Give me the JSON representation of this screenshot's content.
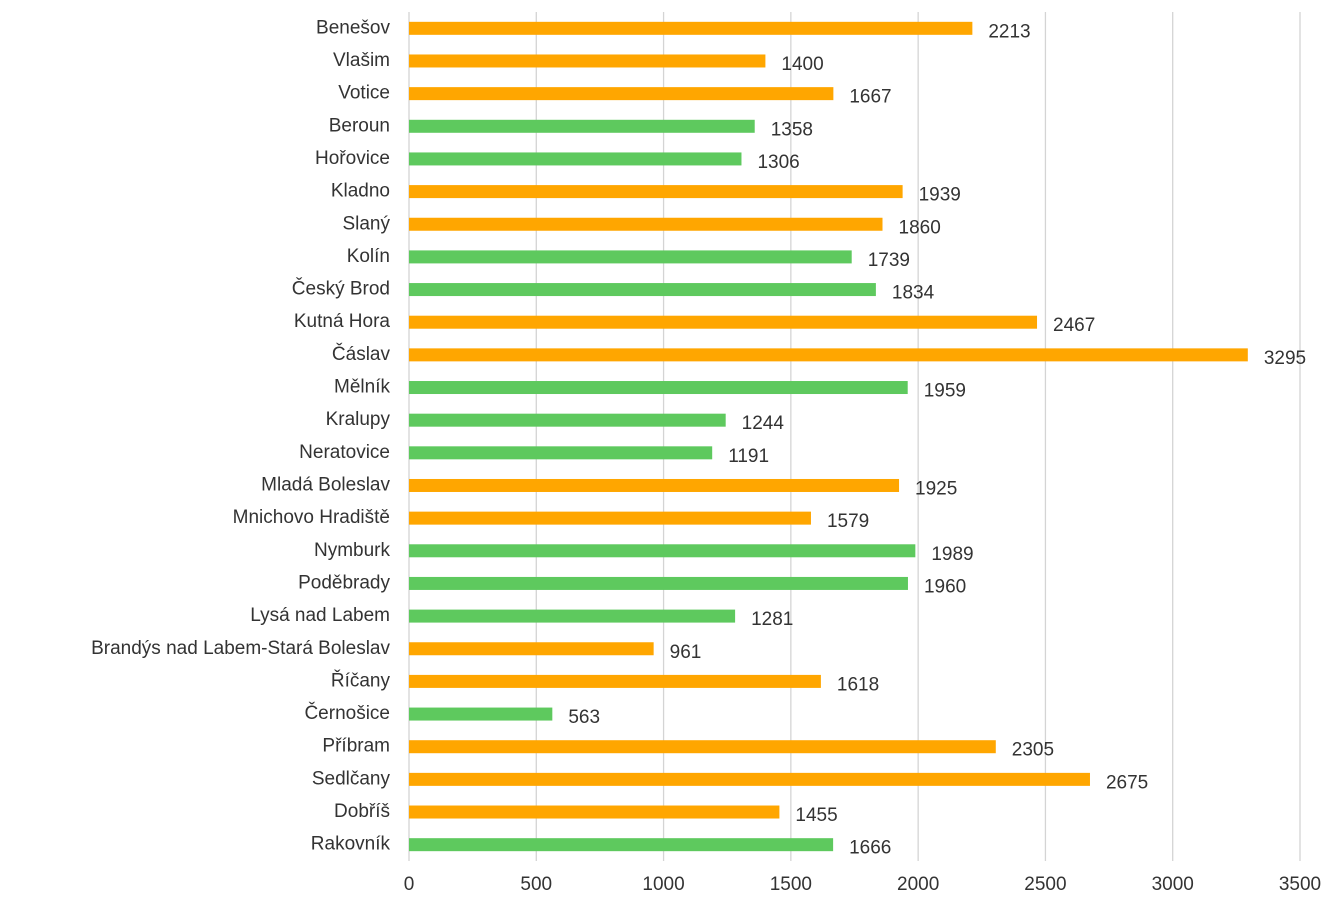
{
  "chart_data": {
    "type": "bar",
    "orientation": "horizontal",
    "categories": [
      "Benešov",
      "Vlašim",
      "Votice",
      "Beroun",
      "Hořovice",
      "Kladno",
      "Slaný",
      "Kolín",
      "Český Brod",
      "Kutná Hora",
      "Čáslav",
      "Mělník",
      "Kralupy",
      "Neratovice",
      "Mladá Boleslav",
      "Mnichovo Hradiště",
      "Nymburk",
      "Poděbrady",
      "Lysá nad Labem",
      "Brandýs nad Labem-Stará Boleslav",
      "Říčany",
      "Černošice",
      "Příbram",
      "Sedlčany",
      "Dobříš",
      "Rakovník"
    ],
    "values": [
      2213,
      1400,
      1667,
      1358,
      1306,
      1939,
      1860,
      1739,
      1834,
      2467,
      3295,
      1959,
      1244,
      1191,
      1925,
      1579,
      1989,
      1960,
      1281,
      961,
      1618,
      563,
      2305,
      2675,
      1455,
      1666
    ],
    "colors": [
      "#ffa600",
      "#ffa600",
      "#ffa600",
      "#5ec95e",
      "#5ec95e",
      "#ffa600",
      "#ffa600",
      "#5ec95e",
      "#5ec95e",
      "#ffa600",
      "#ffa600",
      "#5ec95e",
      "#5ec95e",
      "#5ec95e",
      "#ffa600",
      "#ffa600",
      "#5ec95e",
      "#5ec95e",
      "#5ec95e",
      "#ffa600",
      "#ffa600",
      "#5ec95e",
      "#ffa600",
      "#ffa600",
      "#ffa600",
      "#5ec95e"
    ],
    "xlim": [
      0,
      3500
    ],
    "xticks": [
      0,
      500,
      1000,
      1500,
      2000,
      2500,
      3000,
      3500
    ],
    "grid": true
  }
}
